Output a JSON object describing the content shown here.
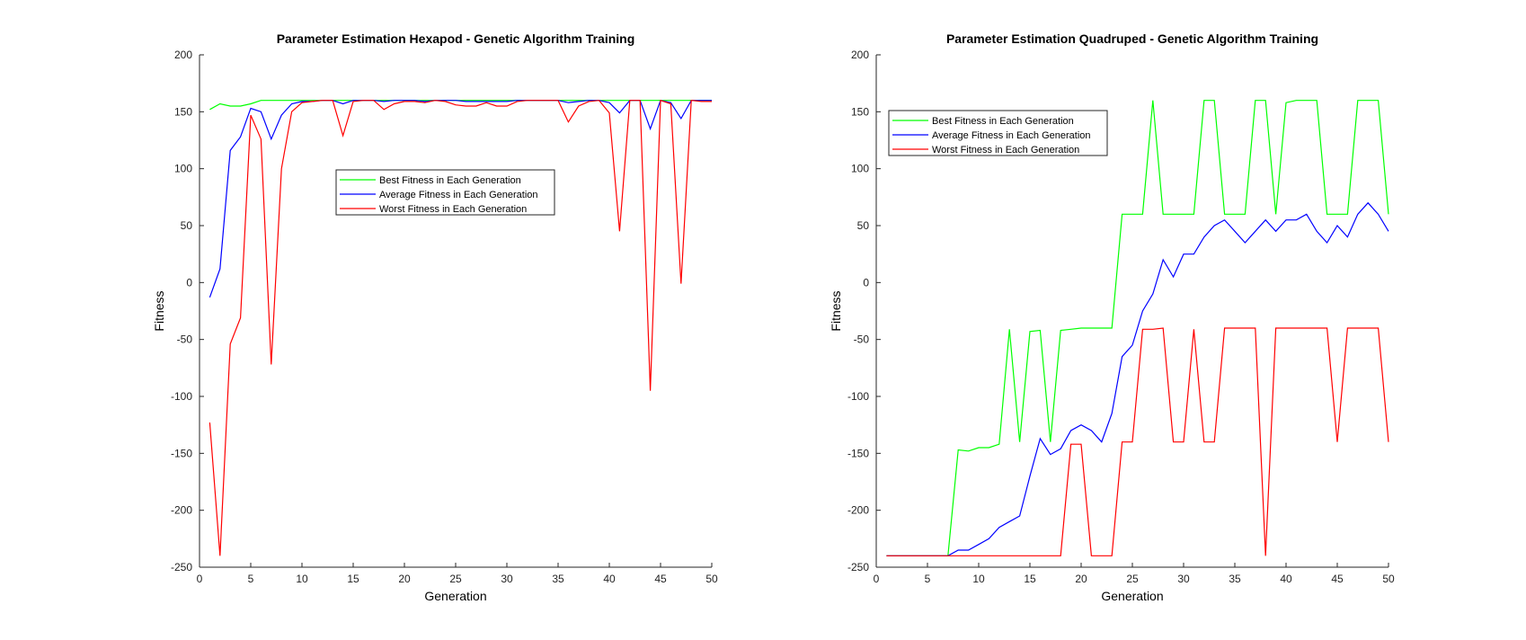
{
  "chart_data": [
    {
      "type": "line",
      "title": "Parameter Estimation Hexapod - Genetic Algorithm Training",
      "xlabel": "Generation",
      "ylabel": "Fitness",
      "xlim": [
        0,
        50
      ],
      "ylim": [
        -250,
        200
      ],
      "xticks": [
        0,
        5,
        10,
        15,
        20,
        25,
        30,
        35,
        40,
        45,
        50
      ],
      "yticks": [
        -250,
        -200,
        -150,
        -100,
        -50,
        0,
        50,
        100,
        150,
        200
      ],
      "grid": false,
      "legend_location": "upper-middle",
      "series": [
        {
          "name": "Best Fitness in Each Generation",
          "color": "#00ff00",
          "x": [
            1,
            2,
            3,
            4,
            5,
            6,
            7,
            8,
            9,
            10,
            11,
            12,
            13,
            14,
            15,
            16,
            17,
            18,
            19,
            20,
            21,
            22,
            23,
            24,
            25,
            26,
            27,
            28,
            29,
            30,
            31,
            32,
            33,
            34,
            35,
            36,
            37,
            38,
            39,
            40,
            41,
            42,
            43,
            44,
            45,
            46,
            47,
            48,
            49,
            50
          ],
          "values": [
            152,
            157,
            155,
            155,
            157,
            160,
            160,
            160,
            160,
            160,
            160,
            160,
            160,
            160,
            160,
            160,
            160,
            160,
            160,
            160,
            160,
            160,
            160,
            160,
            160,
            160,
            160,
            160,
            160,
            160,
            160,
            160,
            160,
            160,
            160,
            160,
            160,
            160,
            160,
            160,
            160,
            160,
            160,
            160,
            160,
            160,
            160,
            160,
            160,
            160
          ]
        },
        {
          "name": "Average Fitness in Each Generation",
          "color": "#0000ff",
          "x": [
            1,
            2,
            3,
            4,
            5,
            6,
            7,
            8,
            9,
            10,
            11,
            12,
            13,
            14,
            15,
            16,
            17,
            18,
            19,
            20,
            21,
            22,
            23,
            24,
            25,
            26,
            27,
            28,
            29,
            30,
            31,
            32,
            33,
            34,
            35,
            36,
            37,
            38,
            39,
            40,
            41,
            42,
            43,
            44,
            45,
            46,
            47,
            48,
            49,
            50
          ],
          "values": [
            -13,
            12,
            116,
            128,
            153,
            150,
            126,
            147,
            157,
            159,
            159,
            160,
            160,
            157,
            160,
            160,
            160,
            159,
            160,
            160,
            160,
            159,
            160,
            160,
            160,
            159,
            159,
            159,
            159,
            159,
            160,
            160,
            160,
            160,
            160,
            158,
            159,
            160,
            160,
            158,
            149,
            160,
            160,
            135,
            160,
            158,
            144,
            160,
            160,
            160
          ]
        },
        {
          "name": "Worst Fitness in Each Generation",
          "color": "#ff0000",
          "x": [
            1,
            2,
            3,
            4,
            5,
            6,
            7,
            8,
            9,
            10,
            11,
            12,
            13,
            14,
            15,
            16,
            17,
            18,
            19,
            20,
            21,
            22,
            23,
            24,
            25,
            26,
            27,
            28,
            29,
            30,
            31,
            32,
            33,
            34,
            35,
            36,
            37,
            38,
            39,
            40,
            41,
            42,
            43,
            44,
            45,
            46,
            47,
            48,
            49,
            50
          ],
          "values": [
            -123,
            -240,
            -54,
            -31,
            147,
            126,
            -72,
            100,
            150,
            158,
            159,
            160,
            160,
            129,
            159,
            160,
            160,
            152,
            157,
            159,
            159,
            158,
            160,
            159,
            156,
            155,
            155,
            158,
            155,
            155,
            159,
            160,
            160,
            160,
            160,
            141,
            155,
            159,
            160,
            149,
            45,
            160,
            160,
            -95,
            160,
            157,
            -1,
            160,
            159,
            159
          ]
        }
      ]
    },
    {
      "type": "line",
      "title": "Parameter Estimation Quadruped - Genetic Algorithm Training",
      "xlabel": "Generation",
      "ylabel": "Fitness",
      "xlim": [
        0,
        50
      ],
      "ylim": [
        -250,
        200
      ],
      "xticks": [
        0,
        5,
        10,
        15,
        20,
        25,
        30,
        35,
        40,
        45,
        50
      ],
      "yticks": [
        -250,
        -200,
        -150,
        -100,
        -50,
        0,
        50,
        100,
        150,
        200
      ],
      "grid": false,
      "legend_location": "upper-left",
      "series": [
        {
          "name": "Best Fitness in Each Generation",
          "color": "#00ff00",
          "x": [
            1,
            2,
            3,
            4,
            5,
            6,
            7,
            8,
            9,
            10,
            11,
            12,
            13,
            14,
            15,
            16,
            17,
            18,
            19,
            20,
            21,
            22,
            23,
            24,
            25,
            26,
            27,
            28,
            29,
            30,
            31,
            32,
            33,
            34,
            35,
            36,
            37,
            38,
            39,
            40,
            41,
            42,
            43,
            44,
            45,
            46,
            47,
            48,
            49,
            50
          ],
          "values": [
            -240,
            -240,
            -240,
            -240,
            -240,
            -240,
            -240,
            -147,
            -148,
            -145,
            -145,
            -142,
            -41,
            -140,
            -43,
            -42,
            -140,
            -42,
            -41,
            -40,
            -40,
            -40,
            -40,
            60,
            60,
            60,
            160,
            60,
            60,
            60,
            60,
            160,
            160,
            60,
            60,
            60,
            160,
            160,
            60,
            158,
            160,
            160,
            160,
            60,
            60,
            60,
            160,
            160,
            160,
            60
          ]
        },
        {
          "name": "Average Fitness in Each Generation",
          "color": "#0000ff",
          "x": [
            1,
            2,
            3,
            4,
            5,
            6,
            7,
            8,
            9,
            10,
            11,
            12,
            13,
            14,
            15,
            16,
            17,
            18,
            19,
            20,
            21,
            22,
            23,
            24,
            25,
            26,
            27,
            28,
            29,
            30,
            31,
            32,
            33,
            34,
            35,
            36,
            37,
            38,
            39,
            40,
            41,
            42,
            43,
            44,
            45,
            46,
            47,
            48,
            49,
            50
          ],
          "values": [
            -240,
            -240,
            -240,
            -240,
            -240,
            -240,
            -240,
            -235,
            -235,
            -230,
            -225,
            -215,
            -210,
            -205,
            -170,
            -137,
            -151,
            -146,
            -130,
            -125,
            -130,
            -140,
            -115,
            -65,
            -55,
            -25,
            -10,
            20,
            5,
            25,
            25,
            40,
            50,
            55,
            45,
            35,
            45,
            55,
            45,
            55,
            55,
            60,
            45,
            35,
            50,
            40,
            60,
            70,
            60,
            45
          ]
        },
        {
          "name": "Worst Fitness in Each Generation",
          "color": "#ff0000",
          "x": [
            1,
            2,
            3,
            4,
            5,
            6,
            7,
            8,
            9,
            10,
            11,
            12,
            13,
            14,
            15,
            16,
            17,
            18,
            19,
            20,
            21,
            22,
            23,
            24,
            25,
            26,
            27,
            28,
            29,
            30,
            31,
            32,
            33,
            34,
            35,
            36,
            37,
            38,
            39,
            40,
            41,
            42,
            43,
            44,
            45,
            46,
            47,
            48,
            49,
            50
          ],
          "values": [
            -240,
            -240,
            -240,
            -240,
            -240,
            -240,
            -240,
            -240,
            -240,
            -240,
            -240,
            -240,
            -240,
            -240,
            -240,
            -240,
            -240,
            -240,
            -142,
            -142,
            -240,
            -240,
            -240,
            -140,
            -140,
            -41,
            -41,
            -40,
            -140,
            -140,
            -41,
            -140,
            -140,
            -40,
            -40,
            -40,
            -40,
            -240,
            -40,
            -40,
            -40,
            -40,
            -40,
            -40,
            -140,
            -40,
            -40,
            -40,
            -40,
            -140
          ]
        }
      ]
    }
  ]
}
